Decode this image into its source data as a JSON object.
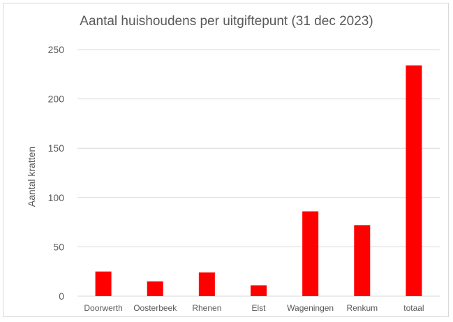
{
  "chart_data": {
    "type": "bar",
    "title": "Aantal huishoudens per uitgiftepunt (31 dec 2023)",
    "xlabel": "",
    "ylabel": "Aantal kratten",
    "categories": [
      "Doorwerth",
      "Oosterbeek",
      "Rhenen",
      "Elst",
      "Wageningen",
      "Renkum",
      "totaal"
    ],
    "values": [
      25,
      15,
      24,
      11,
      86,
      72,
      234
    ],
    "ylim": [
      0,
      250
    ],
    "yticks": [
      0,
      50,
      100,
      150,
      200,
      250
    ],
    "grid": true,
    "legend": "none",
    "bar_color": "#ff0000",
    "grid_color": "#d9d9d9",
    "text_color": "#595959"
  }
}
